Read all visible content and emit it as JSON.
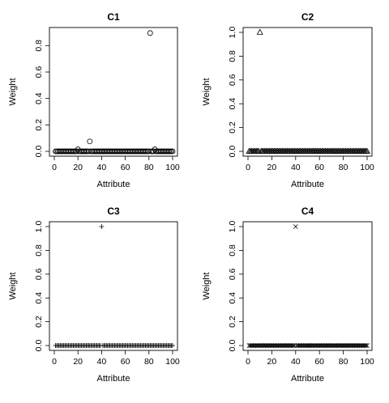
{
  "chart_data": [
    {
      "type": "scatter",
      "title": "C1",
      "xlabel": "Attribute",
      "ylabel": "Weight",
      "marker": "circle",
      "xlim": [
        0,
        100
      ],
      "ylim": [
        0,
        0.9
      ],
      "xticks": [
        0,
        20,
        40,
        60,
        80,
        100
      ],
      "yticks": [
        0.0,
        0.2,
        0.4,
        0.6,
        0.8
      ],
      "x_range": [
        1,
        100
      ],
      "baseline": 0,
      "points": [
        {
          "x": 20,
          "y": 0.015
        },
        {
          "x": 30,
          "y": 0.075
        },
        {
          "x": 81,
          "y": 0.895
        },
        {
          "x": 85,
          "y": 0.015
        }
      ]
    },
    {
      "type": "scatter",
      "title": "C2",
      "xlabel": "Attribute",
      "ylabel": "Weight",
      "marker": "triangle",
      "xlim": [
        0,
        100
      ],
      "ylim": [
        0,
        1.0
      ],
      "xticks": [
        0,
        20,
        40,
        60,
        80,
        100
      ],
      "yticks": [
        0.0,
        0.2,
        0.4,
        0.6,
        0.8,
        1.0
      ],
      "x_range": [
        1,
        100
      ],
      "baseline": 0,
      "points": [
        {
          "x": 10,
          "y": 1.0
        }
      ]
    },
    {
      "type": "scatter",
      "title": "C3",
      "xlabel": "Attribute",
      "ylabel": "Weight",
      "marker": "plus",
      "xlim": [
        0,
        100
      ],
      "ylim": [
        0,
        1.0
      ],
      "xticks": [
        0,
        20,
        40,
        60,
        80,
        100
      ],
      "yticks": [
        0.0,
        0.2,
        0.4,
        0.6,
        0.8,
        1.0
      ],
      "x_range": [
        1,
        100
      ],
      "baseline": 0,
      "points": [
        {
          "x": 40,
          "y": 1.0
        }
      ]
    },
    {
      "type": "scatter",
      "title": "C4",
      "xlabel": "Attribute",
      "ylabel": "Weight",
      "marker": "cross",
      "xlim": [
        0,
        100
      ],
      "ylim": [
        0,
        1.0
      ],
      "xticks": [
        0,
        20,
        40,
        60,
        80,
        100
      ],
      "yticks": [
        0.0,
        0.2,
        0.4,
        0.6,
        0.8,
        1.0
      ],
      "x_range": [
        1,
        100
      ],
      "baseline": 0,
      "points": [
        {
          "x": 40,
          "y": 1.0
        }
      ]
    }
  ]
}
